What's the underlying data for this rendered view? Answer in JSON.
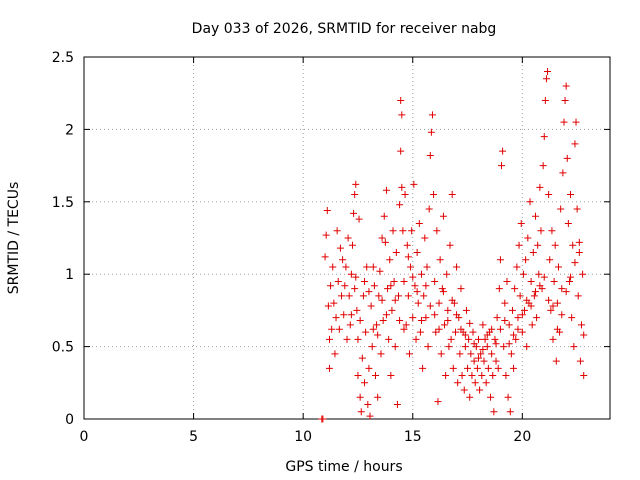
{
  "chart_data": {
    "type": "scatter",
    "title": "Day 033 of 2026, SRMTID for receiver nabg",
    "xlabel": "GPS time / hours",
    "ylabel": "SRMTID / TECUs",
    "xlim": [
      0,
      24
    ],
    "ylim": [
      0,
      2.5
    ],
    "xticks": [
      0,
      5,
      10,
      15,
      20
    ],
    "xtick_labels": [
      "0",
      "5",
      "10",
      "15",
      "20"
    ],
    "yticks": [
      0,
      0.5,
      1,
      1.5,
      2,
      2.5
    ],
    "ytick_labels": [
      "0",
      "0.5",
      "1",
      "1.5",
      "2",
      "2.5"
    ],
    "grid": true,
    "marker": "+",
    "series": [
      {
        "name": "SRMTID",
        "color": "#e00000",
        "points": [
          [
            10.85,
            0.0
          ],
          [
            10.9,
            0.0
          ],
          [
            11.0,
            1.12
          ],
          [
            11.05,
            1.27
          ],
          [
            11.1,
            1.44
          ],
          [
            11.15,
            0.78
          ],
          [
            11.2,
            0.55
          ],
          [
            11.2,
            0.35
          ],
          [
            11.25,
            0.92
          ],
          [
            11.3,
            0.62
          ],
          [
            11.35,
            1.05
          ],
          [
            11.4,
            0.8
          ],
          [
            11.45,
            0.45
          ],
          [
            11.5,
            0.7
          ],
          [
            11.55,
            1.3
          ],
          [
            11.6,
            0.95
          ],
          [
            11.65,
            0.62
          ],
          [
            11.7,
            1.18
          ],
          [
            11.75,
            0.85
          ],
          [
            11.8,
            1.1
          ],
          [
            11.85,
            0.72
          ],
          [
            11.9,
            0.92
          ],
          [
            11.95,
            1.05
          ],
          [
            12.0,
            0.55
          ],
          [
            12.05,
            1.25
          ],
          [
            12.1,
            0.85
          ],
          [
            12.15,
            0.65
          ],
          [
            12.2,
            1.0
          ],
          [
            12.25,
            1.2
          ],
          [
            12.3,
            1.42
          ],
          [
            12.35,
            1.55
          ],
          [
            12.35,
            0.9
          ],
          [
            12.4,
            1.62
          ],
          [
            12.45,
            0.75
          ],
          [
            12.5,
            0.55
          ],
          [
            12.5,
            0.3
          ],
          [
            12.55,
            1.38
          ],
          [
            12.6,
            0.15
          ],
          [
            12.65,
            0.05
          ],
          [
            12.7,
            0.42
          ],
          [
            12.75,
            0.85
          ],
          [
            12.8,
            0.25
          ],
          [
            12.85,
            0.6
          ],
          [
            12.9,
            1.05
          ],
          [
            12.95,
            0.1
          ],
          [
            13.0,
            0.35
          ],
          [
            13.05,
            0.02
          ],
          [
            13.1,
            0.78
          ],
          [
            13.15,
            0.5
          ],
          [
            13.2,
            1.05
          ],
          [
            13.25,
            0.92
          ],
          [
            13.3,
            0.3
          ],
          [
            13.35,
            0.65
          ],
          [
            13.4,
            0.15
          ],
          [
            13.45,
            0.85
          ],
          [
            13.5,
            1.02
          ],
          [
            13.55,
            0.45
          ],
          [
            13.6,
            1.25
          ],
          [
            13.65,
            0.68
          ],
          [
            13.7,
            1.4
          ],
          [
            13.75,
            1.22
          ],
          [
            13.8,
            1.58
          ],
          [
            13.85,
            0.9
          ],
          [
            13.9,
            0.55
          ],
          [
            13.95,
            1.1
          ],
          [
            14.0,
            0.3
          ],
          [
            14.05,
            0.75
          ],
          [
            14.1,
            1.3
          ],
          [
            14.15,
            0.95
          ],
          [
            14.2,
            0.5
          ],
          [
            14.25,
            1.15
          ],
          [
            14.3,
            0.1
          ],
          [
            14.35,
            0.85
          ],
          [
            14.4,
            1.48
          ],
          [
            14.45,
            1.85
          ],
          [
            14.45,
            2.2
          ],
          [
            14.5,
            2.1
          ],
          [
            14.5,
            1.6
          ],
          [
            14.55,
            1.3
          ],
          [
            14.6,
            0.95
          ],
          [
            14.65,
            1.55
          ],
          [
            14.7,
            0.65
          ],
          [
            14.75,
            1.2
          ],
          [
            14.8,
            0.85
          ],
          [
            14.85,
            0.45
          ],
          [
            14.9,
            1.05
          ],
          [
            14.95,
            1.3
          ],
          [
            15.0,
            0.7
          ],
          [
            15.05,
            1.62
          ],
          [
            15.1,
            0.92
          ],
          [
            15.15,
            0.55
          ],
          [
            15.2,
            1.15
          ],
          [
            15.25,
            0.8
          ],
          [
            15.3,
            1.35
          ],
          [
            15.35,
            0.6
          ],
          [
            15.4,
            1.0
          ],
          [
            15.45,
            0.35
          ],
          [
            15.5,
            0.85
          ],
          [
            15.55,
            1.25
          ],
          [
            15.6,
            0.7
          ],
          [
            15.65,
            1.05
          ],
          [
            15.7,
            0.5
          ],
          [
            15.75,
            1.45
          ],
          [
            15.8,
            1.82
          ],
          [
            15.85,
            1.98
          ],
          [
            15.9,
            2.1
          ],
          [
            15.95,
            1.55
          ],
          [
            16.0,
            0.95
          ],
          [
            16.05,
            0.6
          ],
          [
            16.1,
            1.3
          ],
          [
            16.15,
            0.12
          ],
          [
            16.2,
            0.8
          ],
          [
            16.25,
            1.1
          ],
          [
            16.3,
            0.45
          ],
          [
            16.35,
            0.9
          ],
          [
            16.4,
            1.4
          ],
          [
            16.45,
            0.65
          ],
          [
            16.5,
            0.3
          ],
          [
            16.55,
            1.0
          ],
          [
            16.6,
            0.75
          ],
          [
            16.65,
            0.5
          ],
          [
            16.7,
            1.2
          ],
          [
            16.75,
            0.55
          ],
          [
            16.8,
            1.55
          ],
          [
            16.85,
            0.35
          ],
          [
            16.9,
            0.8
          ],
          [
            16.95,
            0.6
          ],
          [
            17.0,
            1.05
          ],
          [
            17.05,
            0.25
          ],
          [
            17.1,
            0.7
          ],
          [
            17.15,
            0.45
          ],
          [
            17.2,
            0.9
          ],
          [
            17.25,
            0.3
          ],
          [
            17.3,
            0.6
          ],
          [
            17.35,
            0.2
          ],
          [
            17.4,
            0.5
          ],
          [
            17.45,
            0.75
          ],
          [
            17.5,
            0.35
          ],
          [
            17.55,
            0.55
          ],
          [
            17.6,
            0.15
          ],
          [
            17.65,
            0.45
          ],
          [
            17.7,
            0.3
          ],
          [
            17.75,
            0.6
          ],
          [
            17.8,
            0.4
          ],
          [
            17.85,
            0.25
          ],
          [
            17.9,
            0.5
          ],
          [
            17.95,
            0.35
          ],
          [
            18.0,
            0.55
          ],
          [
            18.05,
            0.2
          ],
          [
            18.1,
            0.45
          ],
          [
            18.15,
            0.3
          ],
          [
            18.2,
            0.65
          ],
          [
            18.25,
            0.4
          ],
          [
            18.3,
            0.55
          ],
          [
            18.35,
            0.25
          ],
          [
            18.4,
            0.5
          ],
          [
            18.45,
            0.35
          ],
          [
            18.5,
            0.6
          ],
          [
            18.55,
            0.15
          ],
          [
            18.6,
            0.45
          ],
          [
            18.65,
            0.3
          ],
          [
            18.7,
            0.05
          ],
          [
            18.75,
            0.55
          ],
          [
            18.8,
            0.4
          ],
          [
            18.85,
            0.7
          ],
          [
            18.9,
            0.35
          ],
          [
            18.95,
            0.9
          ],
          [
            19.0,
            1.1
          ],
          [
            19.05,
            1.75
          ],
          [
            19.1,
            1.85
          ],
          [
            19.15,
            0.5
          ],
          [
            19.2,
            0.8
          ],
          [
            19.25,
            0.3
          ],
          [
            19.3,
            0.95
          ],
          [
            19.35,
            0.15
          ],
          [
            19.4,
            0.65
          ],
          [
            19.45,
            0.05
          ],
          [
            19.5,
            0.45
          ],
          [
            19.55,
            0.75
          ],
          [
            19.6,
            0.35
          ],
          [
            19.65,
            0.9
          ],
          [
            19.7,
            0.55
          ],
          [
            19.75,
            1.05
          ],
          [
            19.8,
            0.7
          ],
          [
            19.85,
            1.2
          ],
          [
            19.9,
            0.85
          ],
          [
            19.95,
            1.35
          ],
          [
            20.0,
            0.6
          ],
          [
            20.05,
            1.0
          ],
          [
            20.1,
            0.75
          ],
          [
            20.15,
            1.1
          ],
          [
            20.2,
            0.5
          ],
          [
            20.25,
            1.25
          ],
          [
            20.3,
            0.8
          ],
          [
            20.35,
            1.5
          ],
          [
            20.4,
            0.95
          ],
          [
            20.45,
            0.65
          ],
          [
            20.5,
            1.15
          ],
          [
            20.55,
            0.85
          ],
          [
            20.6,
            1.4
          ],
          [
            20.65,
            0.7
          ],
          [
            20.7,
            1.2
          ],
          [
            20.75,
            1.0
          ],
          [
            20.8,
            1.6
          ],
          [
            20.85,
            1.3
          ],
          [
            20.9,
            0.9
          ],
          [
            20.95,
            1.75
          ],
          [
            21.0,
            1.95
          ],
          [
            21.05,
            2.2
          ],
          [
            21.1,
            2.35
          ],
          [
            21.15,
            2.4
          ],
          [
            21.2,
            1.55
          ],
          [
            21.25,
            1.1
          ],
          [
            21.3,
            0.75
          ],
          [
            21.35,
            1.3
          ],
          [
            21.4,
            0.55
          ],
          [
            21.45,
            0.95
          ],
          [
            21.5,
            1.2
          ],
          [
            21.55,
            0.4
          ],
          [
            21.6,
            0.8
          ],
          [
            21.65,
            1.05
          ],
          [
            21.7,
            0.6
          ],
          [
            21.75,
            1.45
          ],
          [
            21.8,
            0.9
          ],
          [
            21.85,
            1.7
          ],
          [
            21.9,
            2.05
          ],
          [
            21.95,
            2.2
          ],
          [
            22.0,
            2.3
          ],
          [
            22.05,
            1.8
          ],
          [
            22.1,
            1.35
          ],
          [
            22.15,
            0.95
          ],
          [
            22.2,
            1.55
          ],
          [
            22.25,
            0.7
          ],
          [
            22.3,
            1.2
          ],
          [
            22.35,
            0.5
          ],
          [
            22.4,
            1.9
          ],
          [
            22.45,
            2.05
          ],
          [
            22.5,
            1.45
          ],
          [
            22.55,
            0.85
          ],
          [
            22.6,
            1.15
          ],
          [
            22.65,
            0.4
          ],
          [
            22.7,
            0.65
          ],
          [
            22.75,
            1.0
          ],
          [
            22.8,
            0.3
          ],
          [
            12.2,
            0.72
          ],
          [
            12.4,
            0.98
          ],
          [
            12.6,
            0.68
          ],
          [
            12.8,
            0.95
          ],
          [
            13.0,
            0.88
          ],
          [
            13.2,
            0.62
          ],
          [
            13.4,
            0.58
          ],
          [
            13.6,
            0.82
          ],
          [
            13.8,
            0.72
          ],
          [
            14.0,
            0.92
          ],
          [
            14.2,
            0.82
          ],
          [
            14.4,
            0.68
          ],
          [
            14.6,
            0.62
          ],
          [
            14.8,
            1.12
          ],
          [
            15.0,
            0.98
          ],
          [
            15.2,
            0.88
          ],
          [
            15.4,
            0.68
          ],
          [
            15.6,
            0.92
          ],
          [
            15.8,
            0.78
          ],
          [
            16.0,
            0.72
          ],
          [
            16.2,
            0.62
          ],
          [
            16.4,
            0.88
          ],
          [
            16.6,
            0.68
          ],
          [
            16.8,
            0.82
          ],
          [
            17.0,
            0.72
          ],
          [
            17.2,
            0.62
          ],
          [
            17.4,
            0.58
          ],
          [
            17.6,
            0.66
          ],
          [
            17.8,
            0.52
          ],
          [
            18.0,
            0.42
          ],
          [
            18.2,
            0.48
          ],
          [
            18.4,
            0.58
          ],
          [
            18.6,
            0.62
          ],
          [
            18.8,
            0.52
          ],
          [
            19.0,
            0.62
          ],
          [
            19.2,
            0.68
          ],
          [
            19.4,
            0.52
          ],
          [
            19.6,
            0.58
          ],
          [
            19.8,
            0.62
          ],
          [
            20.0,
            0.72
          ],
          [
            20.2,
            0.82
          ],
          [
            20.4,
            0.78
          ],
          [
            20.6,
            0.88
          ],
          [
            20.8,
            0.92
          ],
          [
            21.0,
            0.98
          ],
          [
            21.2,
            0.82
          ],
          [
            21.4,
            0.78
          ],
          [
            21.6,
            0.62
          ],
          [
            21.8,
            0.72
          ],
          [
            22.0,
            0.88
          ],
          [
            22.2,
            0.98
          ],
          [
            22.4,
            1.08
          ],
          [
            22.6,
            1.22
          ],
          [
            22.8,
            0.58
          ]
        ]
      }
    ]
  }
}
